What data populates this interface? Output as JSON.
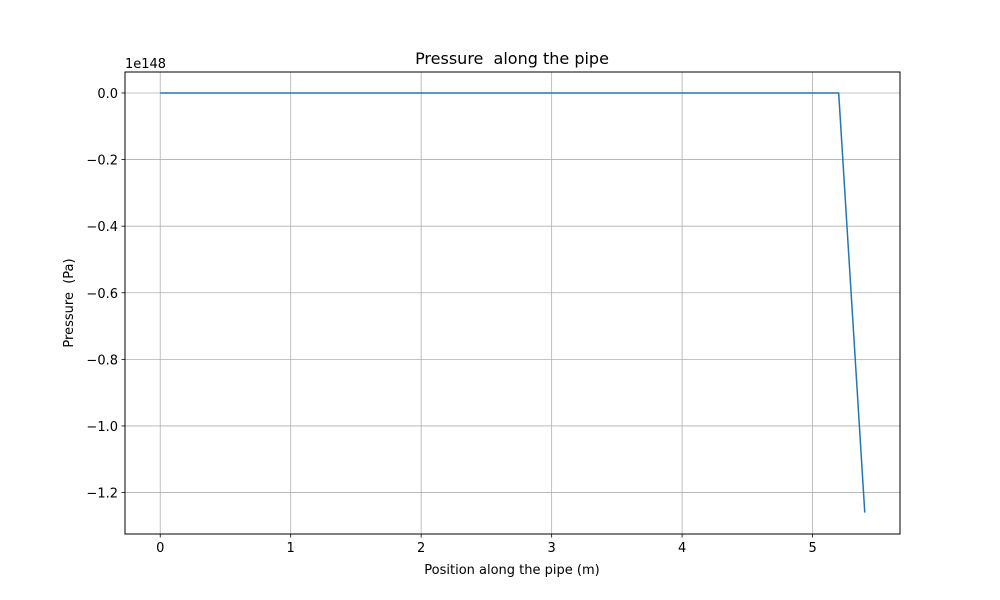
{
  "chart_data": {
    "type": "line",
    "title": "Pressure  along the pipe",
    "xlabel": "Position along the pipe (m)",
    "ylabel": "Pressure  (Pa)",
    "offset_text": "1e148",
    "xlim": [
      -0.27,
      5.67
    ],
    "ylim": [
      -1.3245,
      0.063
    ],
    "xticks": [
      0,
      1,
      2,
      3,
      4,
      5
    ],
    "xtick_labels": [
      "0",
      "1",
      "2",
      "3",
      "4",
      "5"
    ],
    "yticks": [
      0.0,
      -0.2,
      -0.4,
      -0.6,
      -0.8,
      -1.0,
      -1.2
    ],
    "ytick_labels": [
      "0.0",
      "−0.2",
      "−0.4",
      "−0.6",
      "−0.8",
      "−1.0",
      "−1.2"
    ],
    "grid": true,
    "series": [
      {
        "color": "#1f77b4",
        "x": [
          0,
          5.2,
          5.4
        ],
        "y": [
          0,
          0,
          -1.26
        ]
      }
    ]
  }
}
